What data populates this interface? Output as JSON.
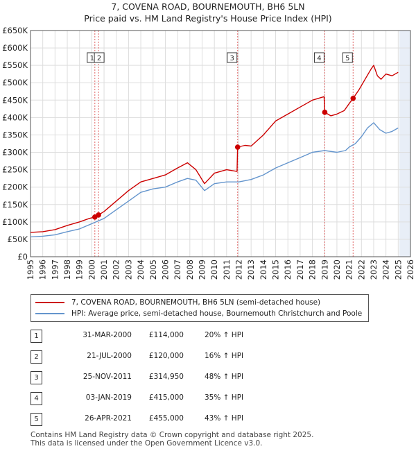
{
  "title_line1": "7, COVENA ROAD, BOURNEMOUTH, BH6 5LN",
  "title_line2": "Price paid vs. HM Land Registry's House Price Index (HPI)",
  "colors": {
    "property": "#cc0000",
    "hpi": "#6495cd",
    "grid": "#dddddd",
    "shade": "#e8eef7",
    "vline": "#e06666"
  },
  "legend": {
    "property_label": "7, COVENA ROAD, BOURNEMOUTH, BH6 5LN (semi-detached house)",
    "hpi_label": "HPI: Average price, semi-detached house, Bournemouth Christchurch and Poole"
  },
  "transactions": [
    {
      "num": "1",
      "date": "31-MAR-2000",
      "price": "£114,000",
      "hpi": "20% ↑ HPI"
    },
    {
      "num": "2",
      "date": "21-JUL-2000",
      "price": "£120,000",
      "hpi": "16% ↑ HPI"
    },
    {
      "num": "3",
      "date": "25-NOV-2011",
      "price": "£314,950",
      "hpi": "48% ↑ HPI"
    },
    {
      "num": "4",
      "date": "03-JAN-2019",
      "price": "£415,000",
      "hpi": "35% ↑ HPI"
    },
    {
      "num": "5",
      "date": "26-APR-2021",
      "price": "£455,000",
      "hpi": "43% ↑ HPI"
    }
  ],
  "footer_line1": "Contains HM Land Registry data © Crown copyright and database right 2025.",
  "footer_line2": "This data is licensed under the Open Government Licence v3.0.",
  "chart_data": {
    "type": "line",
    "title": "7, COVENA ROAD, BOURNEMOUTH, BH6 5LN — Price paid vs. HM Land Registry's House Price Index (HPI)",
    "xlabel": "",
    "ylabel": "",
    "xlim": [
      1995,
      2026
    ],
    "ylim": [
      0,
      650000
    ],
    "y_ticks": [
      0,
      50000,
      100000,
      150000,
      200000,
      250000,
      300000,
      350000,
      400000,
      450000,
      500000,
      550000,
      600000,
      650000
    ],
    "y_tick_labels": [
      "£0",
      "£50K",
      "£100K",
      "£150K",
      "£200K",
      "£250K",
      "£300K",
      "£350K",
      "£400K",
      "£450K",
      "£500K",
      "£550K",
      "£600K",
      "£650K"
    ],
    "x_ticks": [
      1995,
      1996,
      1997,
      1998,
      1999,
      2000,
      2001,
      2002,
      2003,
      2004,
      2005,
      2006,
      2007,
      2008,
      2009,
      2010,
      2011,
      2012,
      2013,
      2014,
      2015,
      2016,
      2017,
      2018,
      2019,
      2020,
      2021,
      2022,
      2023,
      2024,
      2025,
      2026
    ],
    "x_tick_labels": [
      "1995",
      "1996",
      "1997",
      "1998",
      "1999",
      "2000",
      "2001",
      "2002",
      "2003",
      "2004",
      "2005",
      "2006",
      "2007",
      "2008",
      "2009",
      "2010",
      "2011",
      "2012",
      "2013",
      "2014",
      "2015",
      "2016",
      "2017",
      "2018",
      "2019",
      "2020",
      "2021",
      "2022",
      "2023",
      "2024",
      "2025",
      "2026"
    ],
    "shaded_future_from": 2025.1,
    "series": [
      {
        "name": "7, COVENA ROAD, BOURNEMOUTH, BH6 5LN (semi-detached house)",
        "color": "#cc0000",
        "x": [
          1995.0,
          1996.0,
          1997.0,
          1998.0,
          1999.0,
          1999.8,
          2000.25,
          2000.55,
          2001.0,
          2002.0,
          2003.0,
          2004.0,
          2005.0,
          2006.0,
          2007.0,
          2007.8,
          2008.5,
          2009.2,
          2010.0,
          2011.0,
          2011.85,
          2011.9,
          2012.5,
          2013.0,
          2014.0,
          2015.0,
          2016.0,
          2017.0,
          2018.0,
          2018.95,
          2019.01,
          2019.5,
          2020.0,
          2020.6,
          2021.0,
          2021.32,
          2021.8,
          2022.3,
          2022.8,
          2023.0,
          2023.3,
          2023.6,
          2024.0,
          2024.5,
          2025.0
        ],
        "y": [
          70000,
          72000,
          78000,
          90000,
          100000,
          110000,
          114000,
          120000,
          130000,
          160000,
          190000,
          215000,
          225000,
          235000,
          255000,
          270000,
          250000,
          210000,
          240000,
          250000,
          245000,
          314950,
          320000,
          318000,
          350000,
          390000,
          410000,
          430000,
          450000,
          460000,
          415000,
          405000,
          410000,
          420000,
          440000,
          455000,
          480000,
          510000,
          540000,
          550000,
          520000,
          510000,
          525000,
          520000,
          530000
        ]
      },
      {
        "name": "HPI: Average price, semi-detached house, Bournemouth Christchurch and Poole",
        "color": "#6495cd",
        "x": [
          1995.0,
          1996.0,
          1997.0,
          1998.0,
          1999.0,
          2000.0,
          2001.0,
          2002.0,
          2003.0,
          2004.0,
          2005.0,
          2006.0,
          2007.0,
          2007.8,
          2008.5,
          2009.2,
          2010.0,
          2011.0,
          2012.0,
          2013.0,
          2014.0,
          2015.0,
          2016.0,
          2017.0,
          2018.0,
          2019.0,
          2020.0,
          2020.7,
          2021.0,
          2021.5,
          2022.0,
          2022.5,
          2023.0,
          2023.5,
          2024.0,
          2024.5,
          2025.0
        ],
        "y": [
          57000,
          59000,
          63000,
          72000,
          80000,
          95000,
          110000,
          135000,
          160000,
          185000,
          195000,
          200000,
          215000,
          225000,
          220000,
          190000,
          210000,
          215000,
          215000,
          222000,
          235000,
          255000,
          270000,
          285000,
          300000,
          305000,
          300000,
          305000,
          315000,
          325000,
          345000,
          370000,
          385000,
          365000,
          355000,
          360000,
          370000
        ]
      }
    ],
    "markers": [
      {
        "label": "1",
        "x": 2000.25,
        "y": 114000
      },
      {
        "label": "2",
        "x": 2000.55,
        "y": 120000
      },
      {
        "label": "3",
        "x": 2011.9,
        "y": 314950
      },
      {
        "label": "4",
        "x": 2019.01,
        "y": 415000
      },
      {
        "label": "5",
        "x": 2021.32,
        "y": 455000
      }
    ]
  }
}
